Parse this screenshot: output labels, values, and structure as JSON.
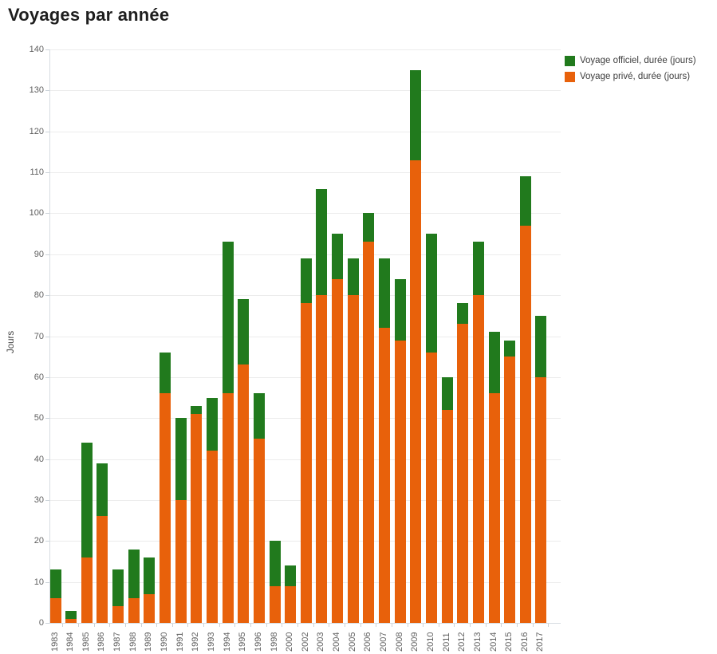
{
  "title": "Voyages par année",
  "colors": {
    "officiel_green": "#217a1d",
    "prive_orange": "#e8610b",
    "gridline": "#ececec",
    "axis_line": "#d6dce1",
    "tick_text": "#5f5f5f",
    "title_text": "#1e1e1e"
  },
  "legend": {
    "items": [
      {
        "label": "Voyage officiel, durée (jours)",
        "color": "#217a1d"
      },
      {
        "label": "Voyage privé, durée (jours)",
        "color": "#e8610b"
      }
    ]
  },
  "chart_data": {
    "type": "bar",
    "stacked": true,
    "title": "Voyages par année",
    "xlabel": "",
    "ylabel": "Jours",
    "ylim": [
      0,
      140
    ],
    "ytick_step": 10,
    "grid": true,
    "legend_position": "top-right",
    "categories": [
      "1983",
      "1984",
      "1985",
      "1986",
      "1987",
      "1988",
      "1989",
      "1990",
      "1991",
      "1992",
      "1993",
      "1994",
      "1995",
      "1996",
      "1998",
      "2000",
      "2002",
      "2003",
      "2004",
      "2005",
      "2006",
      "2007",
      "2008",
      "2009",
      "2010",
      "2011",
      "2012",
      "2013",
      "2014",
      "2015",
      "2016",
      "2017"
    ],
    "series": [
      {
        "key": "prive",
        "name": "Voyage privé, durée (jours)",
        "color": "#e8610b",
        "stack_order": 0,
        "values": [
          6,
          1,
          16,
          26,
          4,
          6,
          7,
          56,
          30,
          51,
          42,
          56,
          63,
          45,
          9,
          9,
          78,
          80,
          84,
          80,
          93,
          72,
          69,
          113,
          66,
          52,
          73,
          80,
          56,
          65,
          97,
          60
        ]
      },
      {
        "key": "officiel",
        "name": "Voyage officiel, durée (jours)",
        "color": "#217a1d",
        "stack_order": 1,
        "values": [
          7,
          2,
          28,
          13,
          9,
          12,
          9,
          10,
          20,
          2,
          13,
          37,
          16,
          11,
          11,
          5,
          11,
          26,
          11,
          9,
          7,
          17,
          15,
          22,
          29,
          8,
          5,
          13,
          15,
          4,
          12,
          15
        ]
      }
    ]
  }
}
